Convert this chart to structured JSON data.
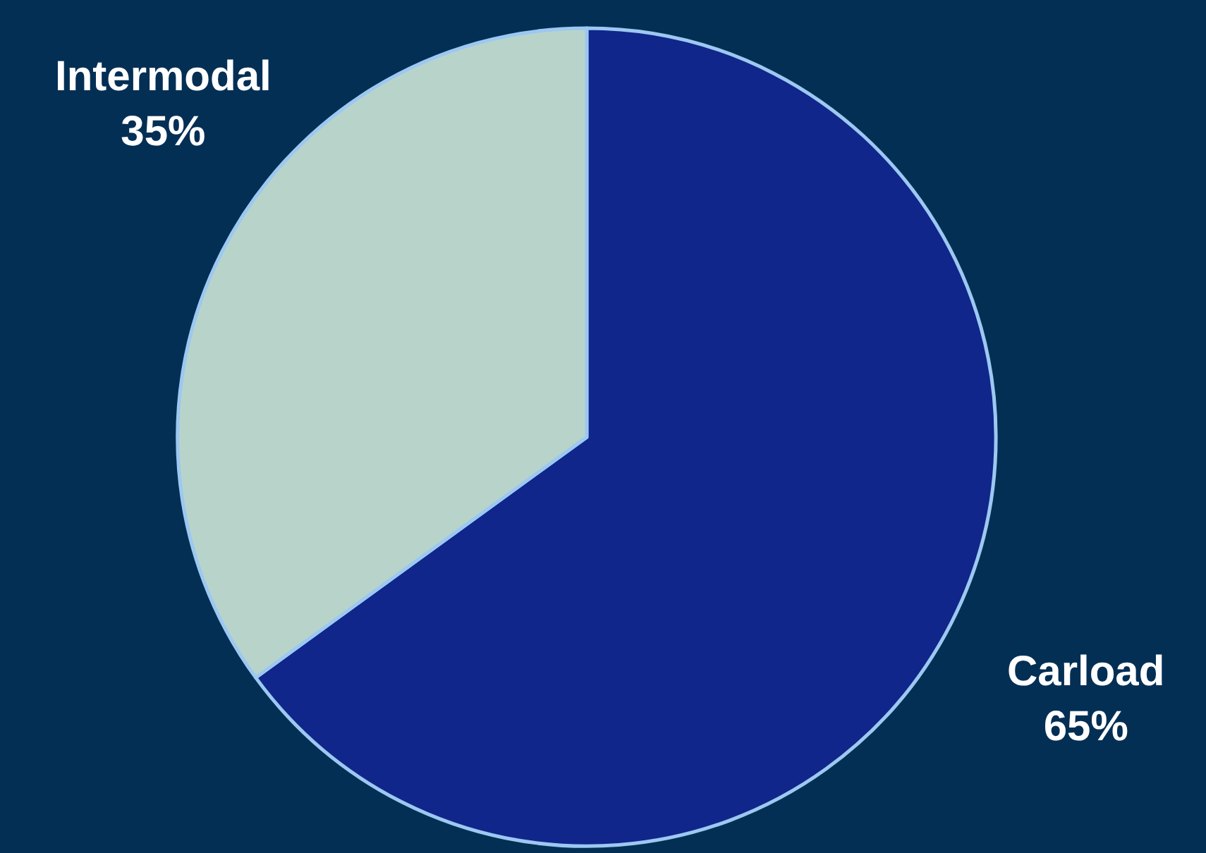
{
  "chart_data": {
    "type": "pie",
    "categories": [
      "Carload",
      "Intermodal"
    ],
    "values": [
      65,
      35
    ],
    "colors": [
      "#10268a",
      "#b8d4ca"
    ],
    "value_labels": [
      "65%",
      "35%"
    ]
  }
}
